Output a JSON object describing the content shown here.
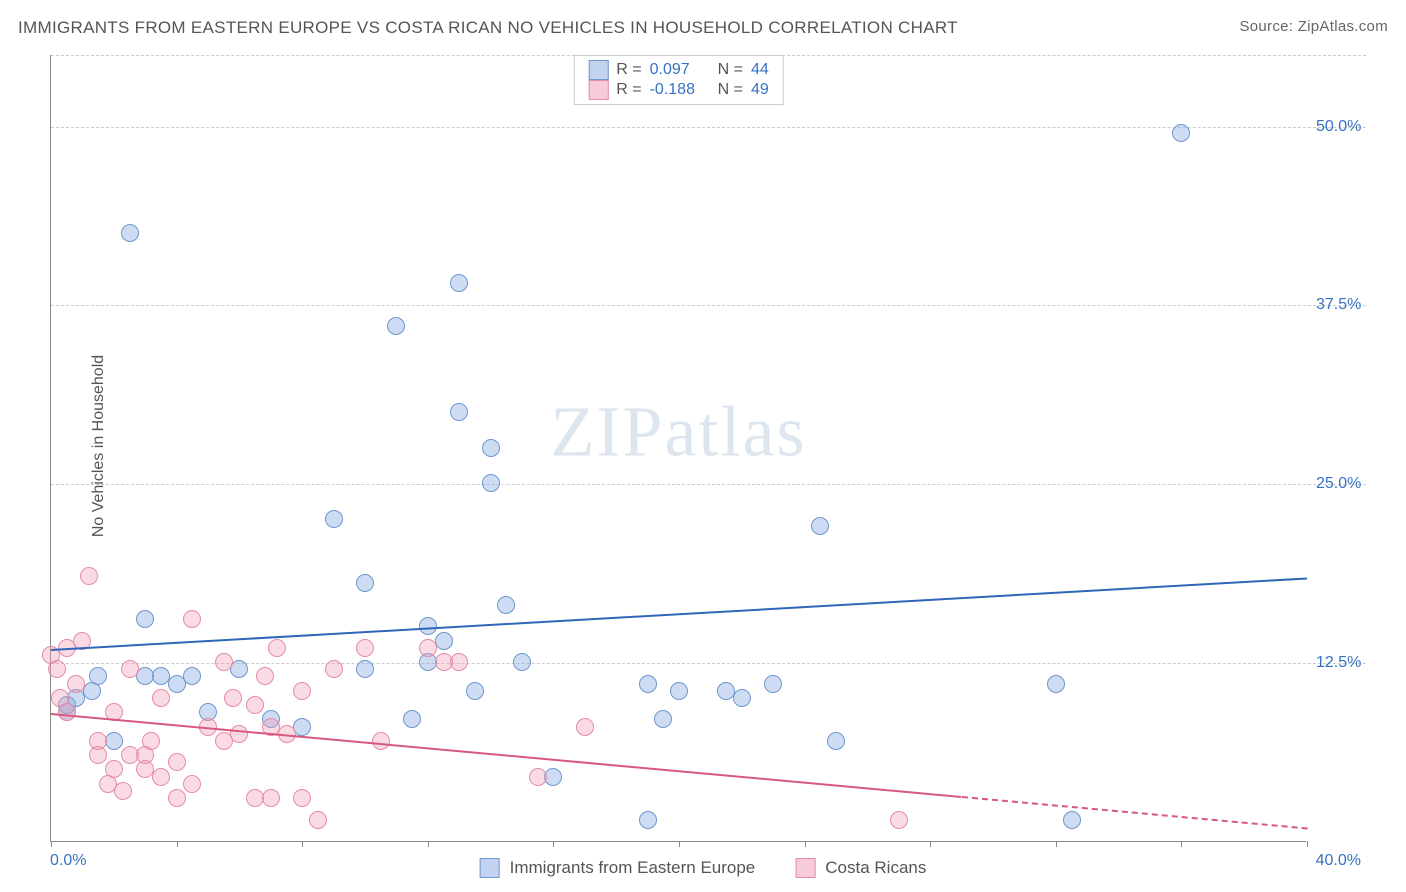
{
  "title": "IMMIGRANTS FROM EASTERN EUROPE VS COSTA RICAN NO VEHICLES IN HOUSEHOLD CORRELATION CHART",
  "source_label": "Source: ZipAtlas.com",
  "ylabel": "No Vehicles in Household",
  "watermark_text": "ZIPatlas",
  "chart": {
    "type": "scatter",
    "x_min": 0.0,
    "x_max": 40.0,
    "y_min": 0.0,
    "y_max": 55.0,
    "y_ticks": [
      12.5,
      25.0,
      37.5,
      50.0
    ],
    "y_tick_labels": [
      "12.5%",
      "25.0%",
      "37.5%",
      "50.0%"
    ],
    "y_tick_color": "#3572c2",
    "x_ticks": [
      0,
      4,
      8,
      12,
      16,
      20,
      24,
      28,
      32,
      36,
      40
    ],
    "x_start_label": "0.0%",
    "x_end_label": "40.0%",
    "grid_color": "#cccccc",
    "background_color": "#ffffff",
    "axis_color": "#888888"
  },
  "series": [
    {
      "name": "Immigrants from Eastern Europe",
      "color_fill": "rgba(131,168,222,0.4)",
      "color_stroke": "#6f97ce",
      "trend_color": "#2f66b8",
      "R": "0.097",
      "N": "44",
      "trend": {
        "x1": 0,
        "y1": 13.5,
        "x2": 40,
        "y2": 18.5,
        "dash_from_x": 40
      },
      "points": [
        [
          0.5,
          9
        ],
        [
          0.5,
          9.5
        ],
        [
          0.8,
          10
        ],
        [
          1.3,
          10.5
        ],
        [
          1.5,
          11.5
        ],
        [
          2,
          7
        ],
        [
          2.5,
          42.5
        ],
        [
          3,
          15.5
        ],
        [
          3,
          11.5
        ],
        [
          3.5,
          11.5
        ],
        [
          4,
          11
        ],
        [
          4.5,
          11.5
        ],
        [
          5,
          9
        ],
        [
          6,
          12
        ],
        [
          7,
          8.5
        ],
        [
          8,
          8
        ],
        [
          9,
          22.5
        ],
        [
          10,
          12
        ],
        [
          10,
          18
        ],
        [
          11,
          36
        ],
        [
          11.5,
          8.5
        ],
        [
          12,
          12.5
        ],
        [
          12,
          15
        ],
        [
          12.5,
          14
        ],
        [
          13,
          30
        ],
        [
          13,
          39
        ],
        [
          13.5,
          10.5
        ],
        [
          14,
          25
        ],
        [
          14,
          27.5
        ],
        [
          14.5,
          16.5
        ],
        [
          15,
          12.5
        ],
        [
          16,
          4.5
        ],
        [
          19,
          11
        ],
        [
          19,
          1.5
        ],
        [
          19.5,
          8.5
        ],
        [
          20,
          10.5
        ],
        [
          21.5,
          10.5
        ],
        [
          22,
          10
        ],
        [
          23,
          11
        ],
        [
          24.5,
          22
        ],
        [
          25,
          7
        ],
        [
          32,
          11
        ],
        [
          32.5,
          1.5
        ],
        [
          36,
          49.5
        ]
      ]
    },
    {
      "name": "Costa Ricans",
      "color_fill": "rgba(240,153,177,0.35)",
      "color_stroke": "#e58ca6",
      "trend_color": "#d7577e",
      "R": "-0.188",
      "N": "49",
      "trend": {
        "x1": 0,
        "y1": 9.0,
        "x2": 29,
        "y2": 3.2,
        "dash_from_x": 29,
        "dash_x2": 40,
        "dash_y2": 1.0
      },
      "points": [
        [
          0,
          13
        ],
        [
          0.2,
          12
        ],
        [
          0.3,
          10
        ],
        [
          0.5,
          9
        ],
        [
          0.5,
          13.5
        ],
        [
          0.8,
          11
        ],
        [
          1,
          14
        ],
        [
          1.2,
          18.5
        ],
        [
          1.5,
          7
        ],
        [
          1.5,
          6
        ],
        [
          1.8,
          4
        ],
        [
          2,
          9
        ],
        [
          2,
          5
        ],
        [
          2.3,
          3.5
        ],
        [
          2.5,
          6
        ],
        [
          2.5,
          12
        ],
        [
          3,
          5
        ],
        [
          3,
          6
        ],
        [
          3.2,
          7
        ],
        [
          3.5,
          4.5
        ],
        [
          3.5,
          10
        ],
        [
          4,
          3
        ],
        [
          4,
          5.5
        ],
        [
          4.5,
          4
        ],
        [
          4.5,
          15.5
        ],
        [
          5,
          8
        ],
        [
          5.5,
          7
        ],
        [
          5.5,
          12.5
        ],
        [
          5.8,
          10
        ],
        [
          6,
          7.5
        ],
        [
          6.5,
          3
        ],
        [
          6.5,
          9.5
        ],
        [
          6.8,
          11.5
        ],
        [
          7,
          3
        ],
        [
          7,
          8
        ],
        [
          7.2,
          13.5
        ],
        [
          7.5,
          7.5
        ],
        [
          8,
          10.5
        ],
        [
          8,
          3
        ],
        [
          8.5,
          1.5
        ],
        [
          9,
          12
        ],
        [
          10,
          13.5
        ],
        [
          10.5,
          7
        ],
        [
          12,
          13.5
        ],
        [
          12.5,
          12.5
        ],
        [
          13,
          12.5
        ],
        [
          15.5,
          4.5
        ],
        [
          17,
          8
        ],
        [
          27,
          1.5
        ]
      ]
    }
  ],
  "legend_top": {
    "rows": [
      {
        "swatch": "blue",
        "r_label": "R =",
        "r_val": "0.097",
        "n_label": "N =",
        "n_val": "44"
      },
      {
        "swatch": "pink",
        "r_label": "R =",
        "r_val": "-0.188",
        "n_label": "N =",
        "n_val": "49"
      }
    ],
    "label_color": "#555555",
    "value_color": "#3572c2"
  },
  "legend_bottom": [
    {
      "swatch": "blue",
      "label": "Immigrants from Eastern Europe"
    },
    {
      "swatch": "pink",
      "label": "Costa Ricans"
    }
  ]
}
